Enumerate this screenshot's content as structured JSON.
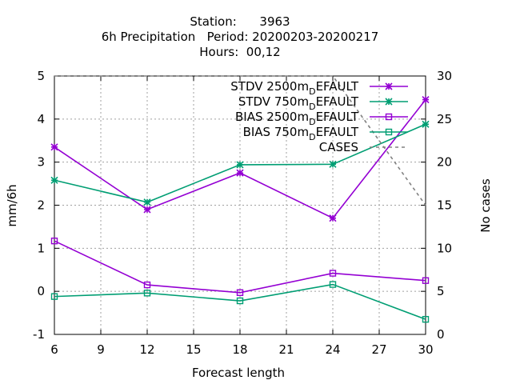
{
  "chart_data": {
    "type": "line",
    "title": [
      "Station:      3963",
      "6h Precipitation   Period: 20200203-20200217",
      "Hours:  00,12"
    ],
    "xlabel": "Forecast length",
    "ylabel": "mm/6h",
    "y2label": "No cases",
    "xlim": [
      6,
      30
    ],
    "ylim": [
      -1,
      5
    ],
    "y2lim": [
      0,
      30
    ],
    "xticks": [
      6,
      9,
      12,
      15,
      18,
      21,
      24,
      27,
      30
    ],
    "yticks": [
      -1,
      0,
      1,
      2,
      3,
      4,
      5
    ],
    "y2ticks": [
      0,
      5,
      10,
      15,
      20,
      25,
      30
    ],
    "grid": true,
    "legend_position": "top-right",
    "x": [
      6,
      12,
      18,
      24,
      30
    ],
    "series": [
      {
        "name": "STDV 2500m",
        "subscript": "D",
        "suffix": "EFAULT",
        "color": "#9400d3",
        "marker": "star",
        "axis": "y",
        "values": [
          3.35,
          1.9,
          2.75,
          1.7,
          4.45
        ]
      },
      {
        "name": "STDV 750m",
        "subscript": "D",
        "suffix": "EFAULT",
        "color": "#009e73",
        "marker": "star",
        "axis": "y",
        "values": [
          2.58,
          2.07,
          2.94,
          2.95,
          3.88
        ]
      },
      {
        "name": "BIAS 2500m",
        "subscript": "D",
        "suffix": "EFAULT",
        "color": "#9400d3",
        "marker": "square",
        "axis": "y",
        "values": [
          1.17,
          0.15,
          -0.03,
          0.42,
          0.25
        ]
      },
      {
        "name": "BIAS 750m",
        "subscript": "D",
        "suffix": "EFAULT",
        "color": "#009e73",
        "marker": "square",
        "axis": "y",
        "values": [
          -0.12,
          -0.04,
          -0.22,
          0.16,
          -0.65
        ]
      },
      {
        "name": "CASES",
        "color": "#808080",
        "marker": "none",
        "dashed": true,
        "axis": "y2",
        "values": [
          30,
          30,
          30,
          30,
          15
        ]
      }
    ]
  }
}
